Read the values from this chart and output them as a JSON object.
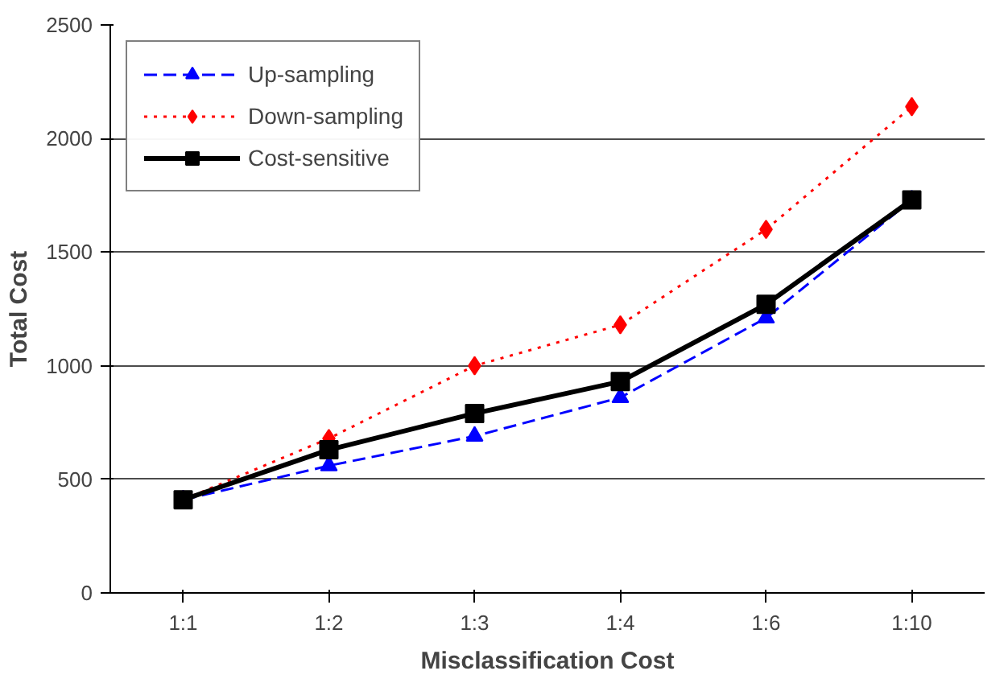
{
  "chart_data": {
    "type": "line",
    "xlabel": "Misclassification Cost",
    "ylabel": "Total Cost",
    "categories": [
      "1:1",
      "1:2",
      "1:3",
      "1:4",
      "1:6",
      "1:10"
    ],
    "series": [
      {
        "name": "Up-sampling",
        "color": "#0000ff",
        "marker": "triangle",
        "line_style": "dashed",
        "values": [
          410,
          560,
          690,
          860,
          1210,
          1730
        ]
      },
      {
        "name": "Down-sampling",
        "color": "#ff0000",
        "marker": "diamond",
        "line_style": "dotted",
        "values": [
          410,
          680,
          1000,
          1180,
          1600,
          2140
        ]
      },
      {
        "name": "Cost-sensitive",
        "color": "#000000",
        "marker": "square",
        "line_style": "solid",
        "values": [
          410,
          630,
          790,
          930,
          1270,
          1730
        ]
      }
    ],
    "ylim": [
      0,
      2500
    ],
    "yticks": [
      0,
      500,
      1000,
      1500,
      2000,
      2500
    ],
    "grid": "y",
    "legend": "top left"
  }
}
